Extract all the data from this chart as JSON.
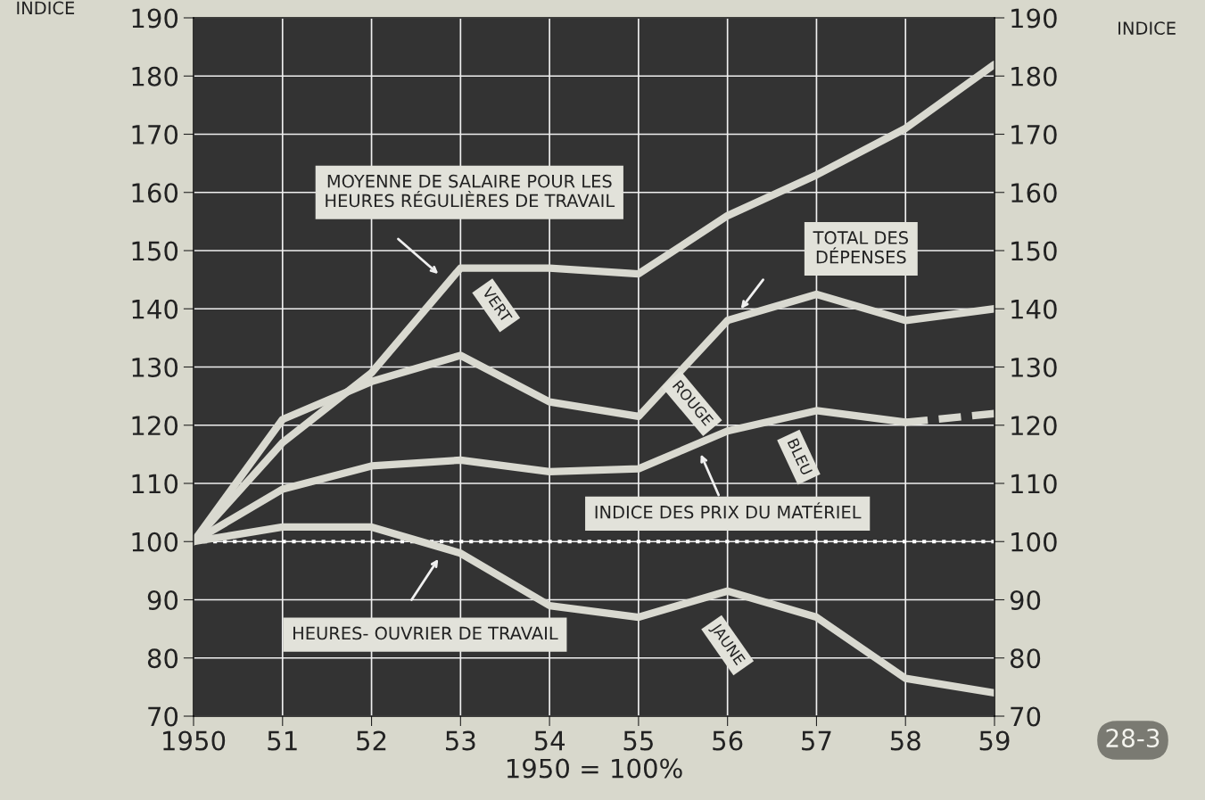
{
  "chart_data": {
    "type": "line",
    "ylabel": "INDICE",
    "y2label": "INDICE",
    "xlabel": "1950 = 100%",
    "x": [
      1950,
      1951,
      1952,
      1953,
      1954,
      1955,
      1956,
      1957,
      1958,
      1959
    ],
    "xlim": [
      1950,
      1959
    ],
    "xticks": [
      1950,
      {
        "value": 1951,
        "label": "51"
      },
      {
        "value": 1952,
        "label": "52"
      },
      {
        "value": 1953,
        "label": "53"
      },
      {
        "value": 1954,
        "label": "54"
      },
      {
        "value": 1955,
        "label": "55"
      },
      {
        "value": 1956,
        "label": "56"
      },
      {
        "value": 1957,
        "label": "57"
      },
      {
        "value": 1958,
        "label": "58"
      },
      {
        "value": 1959,
        "label": "59"
      }
    ],
    "ylim": [
      70,
      190
    ],
    "yticks": [
      70,
      80,
      90,
      100,
      110,
      120,
      130,
      140,
      150,
      160,
      170,
      180,
      190
    ],
    "y2lim": [
      70,
      190
    ],
    "y2ticks": [
      70,
      80,
      90,
      100,
      110,
      120,
      130,
      140,
      150,
      160,
      170,
      180,
      190
    ],
    "grid": true,
    "marker": "none",
    "line_style": "solid",
    "series": [
      {
        "color": "#d9d9d0",
        "values": [
          100,
          117,
          129,
          147,
          147,
          146,
          156,
          163,
          171,
          182
        ]
      },
      {
        "color": "#d9d9d0",
        "values": [
          100,
          121,
          127.5,
          132,
          124,
          121.5,
          138,
          142.5,
          138,
          140
        ]
      },
      {
        "color": "#d9d9d0",
        "values": [
          100,
          109,
          113,
          114,
          112,
          112.5,
          119,
          122.5,
          120.5,
          null
        ]
      },
      {
        "color": "#d9d9d0",
        "line_style": "dashed",
        "x": [
          1958,
          1959
        ],
        "values": [
          120.5,
          122
        ]
      },
      {
        "color": "#d9d9d0",
        "values": [
          100,
          102.5,
          102.5,
          98,
          89,
          87,
          91.5,
          87,
          76.5,
          74
        ]
      }
    ],
    "ref_lines": [
      {
        "axis": "y",
        "value": 100,
        "color": "#ffffff",
        "line_style": "dotted"
      }
    ],
    "annotations": [
      "MOYENNE DE SALAIRE POUR LES\nHEURES RÉGULIÈRES DE TRAVAIL",
      "TOTAL DES\nDÉPENSES",
      "INDICE DES PRIX DU MATÉRIEL",
      "HEURES- OUVRIER DE TRAVAIL",
      "VERT",
      "ROUGE",
      "BLEU",
      "JAUNE",
      "28-3"
    ]
  }
}
